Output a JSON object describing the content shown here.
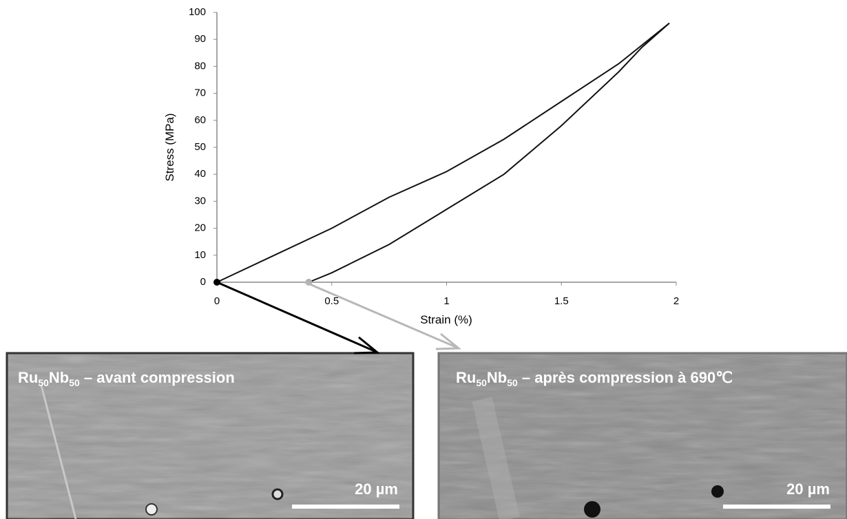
{
  "chart_data": {
    "type": "line",
    "xlabel": "Strain (%)",
    "ylabel": "Stress (MPa)",
    "xlim": [
      0,
      2
    ],
    "xticks": [
      0,
      0.5,
      1,
      1.5,
      2
    ],
    "ylim": [
      0,
      100
    ],
    "yticks": [
      0,
      10,
      20,
      30,
      40,
      50,
      60,
      70,
      80,
      90,
      100
    ],
    "grid": false,
    "series": [
      {
        "color": "#111111",
        "x": [
          0,
          0.25,
          0.5,
          0.75,
          1.0,
          1.25,
          1.5,
          1.75,
          1.97
        ],
        "values": [
          0,
          10,
          20,
          31.5,
          41,
          53,
          67,
          81,
          96
        ]
      },
      {
        "color": "#111111",
        "x": [
          1.97,
          1.85,
          1.75,
          1.5,
          1.25,
          1.0,
          0.75,
          0.5,
          0.4
        ],
        "values": [
          96,
          87,
          78,
          58,
          40,
          27,
          14,
          3.5,
          0
        ]
      }
    ],
    "markers": [
      {
        "x": 0,
        "y": 0,
        "color": "#000000"
      },
      {
        "x": 0.4,
        "y": 0,
        "color": "#b0b0b0"
      }
    ]
  },
  "panels": [
    {
      "label_parts": [
        "Ru",
        "50",
        "Nb",
        "50",
        " – avant compression"
      ],
      "scale": "20 µm"
    },
    {
      "label_parts": [
        "Ru",
        "50",
        "Nb",
        "50",
        " – après compression à 690℃"
      ],
      "scale": "20 µm"
    }
  ]
}
